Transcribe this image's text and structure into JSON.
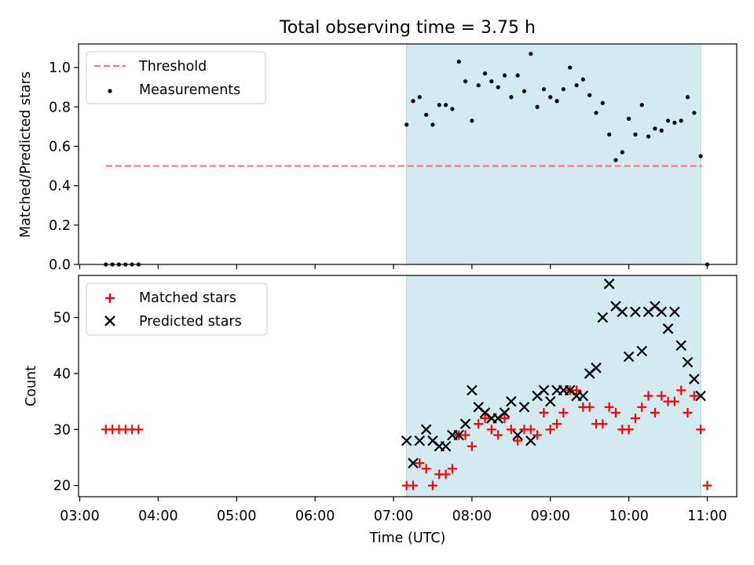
{
  "chart_data": [
    {
      "type": "scatter",
      "title": "Total observing time = 3.75 h",
      "ylabel": "Matched/Predicted stars",
      "xlabel": "",
      "xlim": [
        "03:00",
        "11:00"
      ],
      "ylim": [
        0,
        1.12
      ],
      "yticks": [
        "0.0",
        "0.2",
        "0.4",
        "0.6",
        "0.8",
        "1.0"
      ],
      "shaded_interval": [
        "07:10",
        "10:55"
      ],
      "shade_color": "#d4eaf1",
      "legend_position": "upper left",
      "series": [
        {
          "name": "Threshold",
          "kind": "dashed-line",
          "color": "#ff7373",
          "x": [
            "03:20",
            "10:56"
          ],
          "y": [
            0.5,
            0.5
          ]
        },
        {
          "name": "Measurements",
          "kind": "points",
          "color": "#000000",
          "x": [
            "03:20",
            "03:25",
            "03:30",
            "03:35",
            "03:40",
            "03:45",
            "07:10",
            "07:15",
            "07:20",
            "07:25",
            "07:30",
            "07:35",
            "07:40",
            "07:45",
            "07:50",
            "07:55",
            "08:00",
            "08:05",
            "08:10",
            "08:15",
            "08:20",
            "08:25",
            "08:30",
            "08:35",
            "08:40",
            "08:45",
            "08:50",
            "08:55",
            "09:00",
            "09:05",
            "09:10",
            "09:15",
            "09:20",
            "09:25",
            "09:30",
            "09:35",
            "09:40",
            "09:45",
            "09:50",
            "09:55",
            "10:00",
            "10:05",
            "10:10",
            "10:15",
            "10:20",
            "10:25",
            "10:30",
            "10:35",
            "10:40",
            "10:45",
            "10:50",
            "10:55",
            "11:00"
          ],
          "y": [
            0,
            0,
            0,
            0,
            0,
            0,
            0.71,
            0.83,
            0.85,
            0.76,
            0.71,
            0.81,
            0.81,
            0.79,
            1.03,
            0.93,
            0.73,
            0.91,
            0.97,
            0.93,
            0.9,
            0.96,
            0.85,
            0.96,
            0.88,
            1.07,
            0.8,
            0.89,
            0.85,
            0.83,
            0.89,
            1.0,
            0.91,
            0.94,
            0.86,
            0.77,
            0.82,
            0.66,
            0.53,
            0.57,
            0.74,
            0.66,
            0.81,
            0.65,
            0.69,
            0.68,
            0.73,
            0.72,
            0.73,
            0.85,
            0.77,
            0.55,
            0
          ]
        }
      ]
    },
    {
      "type": "scatter",
      "xlabel": "Time (UTC)",
      "ylabel": "Count",
      "xlim": [
        "03:00",
        "11:00"
      ],
      "ylim": [
        18,
        57.5
      ],
      "xticks": [
        "03:00",
        "04:00",
        "05:00",
        "06:00",
        "07:00",
        "08:00",
        "09:00",
        "10:00",
        "11:00"
      ],
      "yticks": [
        "20",
        "30",
        "40",
        "50"
      ],
      "shaded_interval": [
        "07:10",
        "10:55"
      ],
      "shade_color": "#d4eaf1",
      "legend_position": "upper left",
      "series": [
        {
          "name": "Matched stars",
          "marker": "plus",
          "color": "#ff0000",
          "x": [
            "03:20",
            "03:25",
            "03:30",
            "03:35",
            "03:40",
            "03:45",
            "07:10",
            "07:15",
            "07:20",
            "07:25",
            "07:30",
            "07:35",
            "07:40",
            "07:45",
            "07:50",
            "07:55",
            "08:00",
            "08:05",
            "08:10",
            "08:15",
            "08:20",
            "08:25",
            "08:30",
            "08:35",
            "08:40",
            "08:45",
            "08:50",
            "08:55",
            "09:00",
            "09:05",
            "09:10",
            "09:15",
            "09:20",
            "09:25",
            "09:30",
            "09:35",
            "09:40",
            "09:45",
            "09:50",
            "09:55",
            "10:00",
            "10:05",
            "10:10",
            "10:15",
            "10:20",
            "10:25",
            "10:30",
            "10:35",
            "10:40",
            "10:45",
            "10:50",
            "10:55",
            "11:00"
          ],
          "y": [
            30,
            30,
            30,
            30,
            30,
            30,
            20,
            20,
            24,
            23,
            20,
            22,
            22,
            23,
            29,
            29,
            27,
            31,
            32,
            30,
            29,
            32,
            30,
            28,
            30,
            30,
            29,
            33,
            30,
            31,
            33,
            37,
            37,
            34,
            34,
            31,
            31,
            34,
            33,
            30,
            30,
            32,
            34,
            36,
            33,
            36,
            35,
            35,
            37,
            33,
            36,
            30,
            20
          ]
        },
        {
          "name": "Predicted stars",
          "marker": "x",
          "color": "#000000",
          "x": [
            "07:10",
            "07:15",
            "07:20",
            "07:25",
            "07:30",
            "07:35",
            "07:40",
            "07:45",
            "07:50",
            "07:55",
            "08:00",
            "08:05",
            "08:10",
            "08:15",
            "08:20",
            "08:25",
            "08:30",
            "08:35",
            "08:40",
            "08:45",
            "08:50",
            "08:55",
            "09:00",
            "09:05",
            "09:10",
            "09:15",
            "09:20",
            "09:25",
            "09:30",
            "09:35",
            "09:40",
            "09:45",
            "09:50",
            "09:55",
            "10:00",
            "10:05",
            "10:10",
            "10:15",
            "10:20",
            "10:25",
            "10:30",
            "10:35",
            "10:40",
            "10:45",
            "10:50",
            "10:55"
          ],
          "y": [
            28,
            24,
            28,
            30,
            28,
            27,
            27,
            29,
            29,
            31,
            37,
            34,
            33,
            32,
            32,
            33,
            35,
            29,
            34,
            28,
            36,
            37,
            35,
            37,
            37,
            37,
            36,
            36,
            40,
            41,
            50,
            56,
            52,
            51,
            43,
            51,
            44,
            51,
            52,
            51,
            48,
            51,
            45,
            42,
            39,
            36
          ]
        }
      ]
    }
  ]
}
